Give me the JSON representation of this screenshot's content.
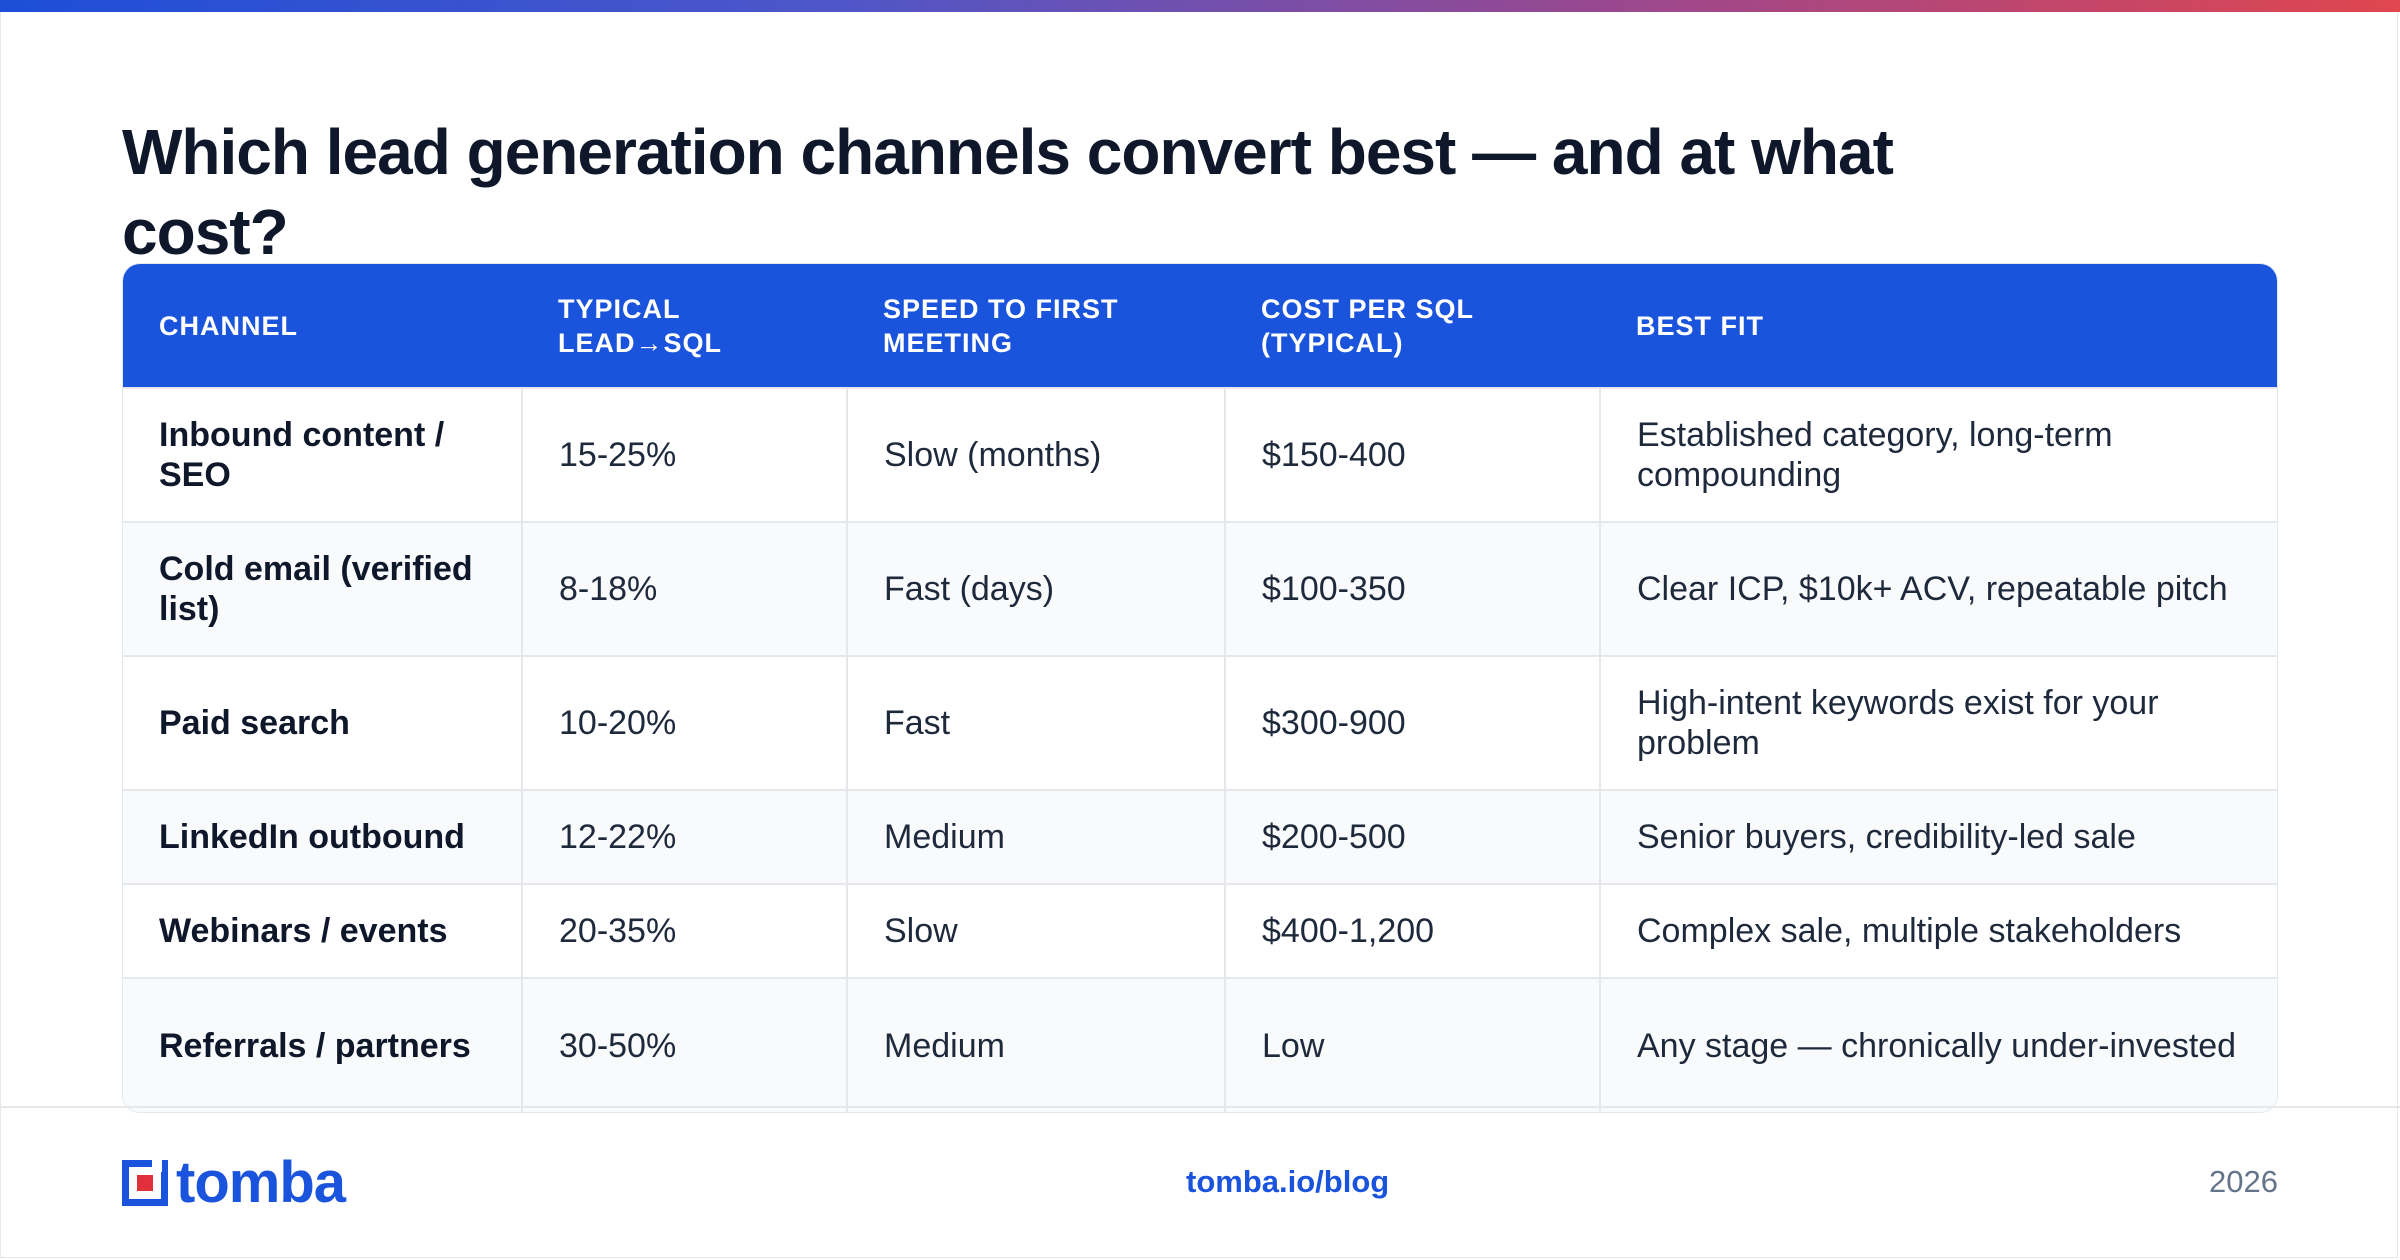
{
  "title": "Which lead generation channels convert best — and at what cost?",
  "table": {
    "headers": [
      "CHANNEL",
      "TYPICAL LEAD→SQL",
      "SPEED TO FIRST MEETING",
      "COST PER SQL (TYPICAL)",
      "BEST FIT"
    ],
    "rows": [
      [
        "Inbound content / SEO",
        "15-25%",
        "Slow (months)",
        "$150-400",
        "Established category, long-term compounding"
      ],
      [
        "Cold email (verified list)",
        "8-18%",
        "Fast (days)",
        "$100-350",
        "Clear ICP, $10k+ ACV, repeatable pitch"
      ],
      [
        "Paid search",
        "10-20%",
        "Fast",
        "$300-900",
        "High-intent keywords exist for your problem"
      ],
      [
        "LinkedIn outbound",
        "12-22%",
        "Medium",
        "$200-500",
        "Senior buyers, credibility-led sale"
      ],
      [
        "Webinars / events",
        "20-35%",
        "Slow",
        "$400-1,200",
        "Complex sale, multiple stakeholders"
      ],
      [
        "Referrals / partners",
        "30-50%",
        "Medium",
        "Low",
        "Any stage — chronically under-invested"
      ]
    ]
  },
  "footer": {
    "logo_text": "tomba",
    "link": "tomba.io/blog",
    "year": "2026"
  },
  "colors": {
    "accent": "#1a53dc",
    "logo_red": "#e0303a",
    "gradient": [
      "#1d4ed8",
      "#e0464e"
    ]
  }
}
